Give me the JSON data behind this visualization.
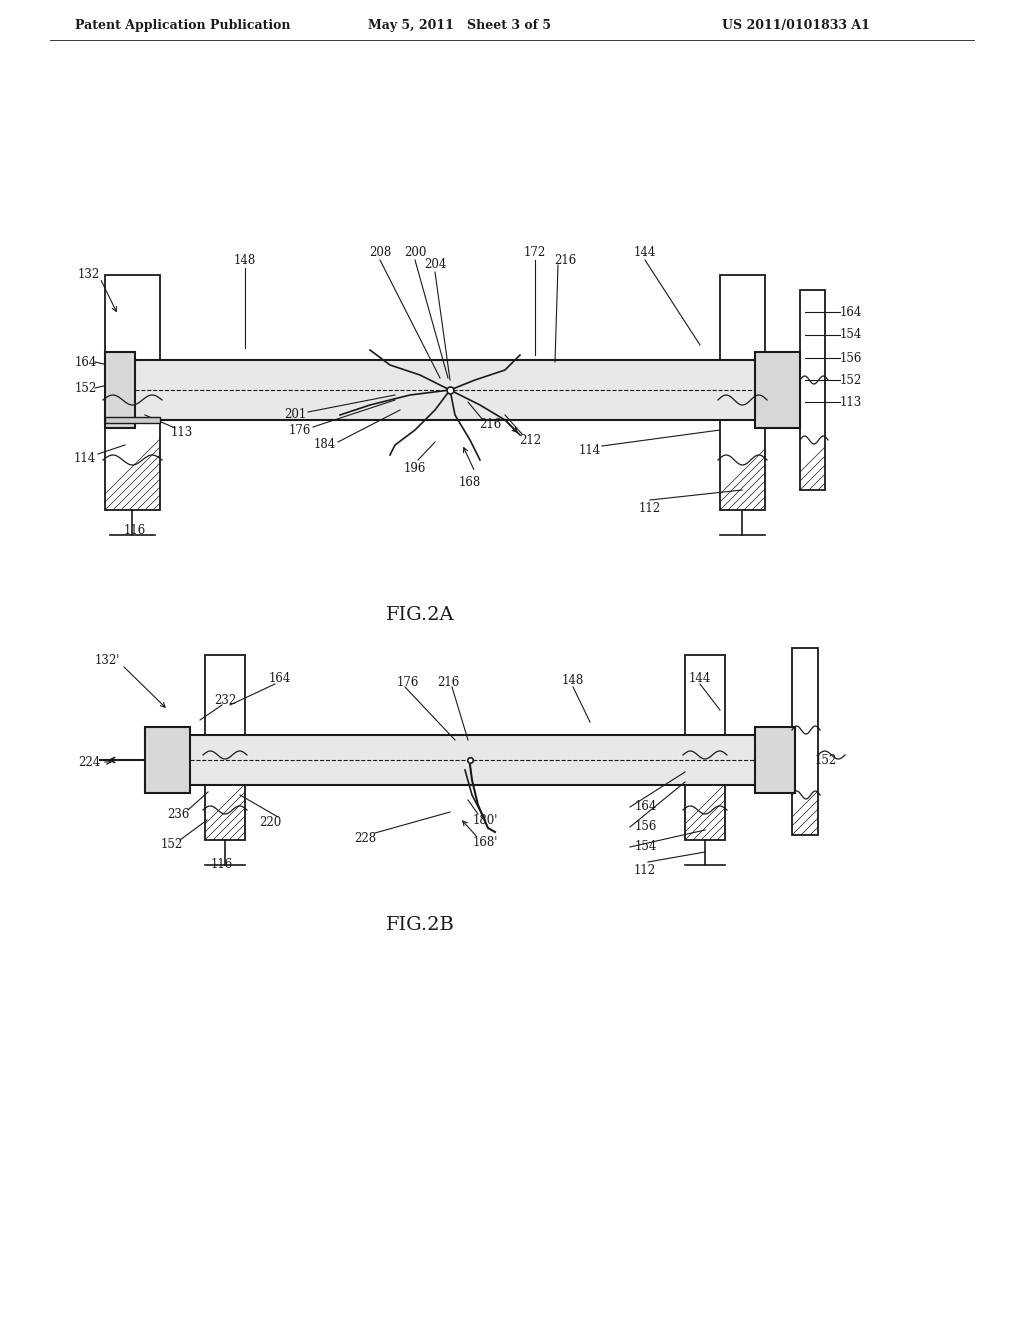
{
  "background_color": "#ffffff",
  "header_left": "Patent Application Publication",
  "header_center": "May 5, 2011   Sheet 3 of 5",
  "header_right": "US 2011/0101833 A1",
  "fig2a_label": "FIG.2A",
  "fig2b_label": "FIG.2B",
  "text_color": "#1a1a1a",
  "line_color": "#1a1a1a"
}
